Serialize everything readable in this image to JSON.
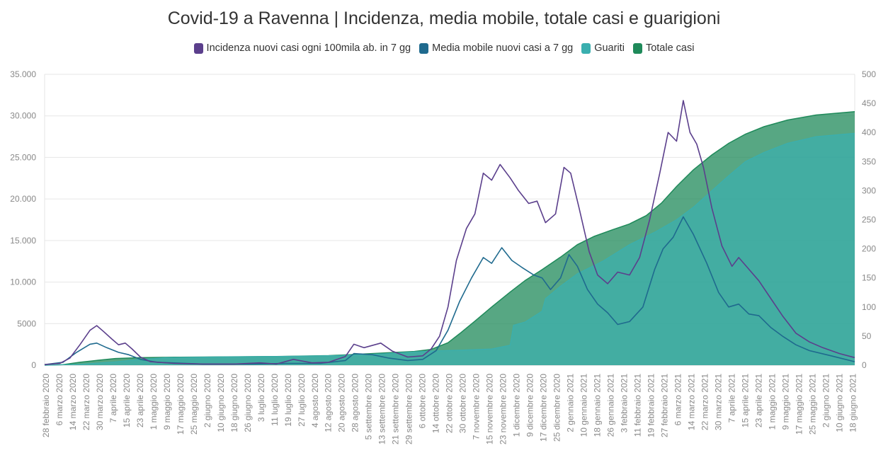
{
  "colors": {
    "incidenza": "#5b3f8c",
    "media": "#1f6a8e",
    "guariti": "#3aafaf",
    "totale": "#1f8a5a",
    "grid": "#e6e6e6",
    "axis_text": "#888888"
  },
  "chart_data": {
    "type": "area",
    "title": "Covid-19 a Ravenna | Incidenza, media mobile, totale casi e guarigioni",
    "legend_position": "top-center",
    "grid": true,
    "y_left": {
      "ylim": [
        0,
        35000
      ],
      "ticks": [
        0,
        5000,
        10000,
        15000,
        20000,
        25000,
        30000,
        35000
      ],
      "tick_labels": [
        "0",
        "5000",
        "10.000",
        "15.000",
        "20.000",
        "25.000",
        "30.000",
        "35.000"
      ]
    },
    "y_right": {
      "ylim": [
        0,
        500
      ],
      "ticks": [
        0,
        50,
        100,
        150,
        200,
        250,
        300,
        350,
        400,
        450,
        500
      ],
      "tick_labels": [
        "0",
        "50",
        "100",
        "150",
        "200",
        "250",
        "300",
        "350",
        "400",
        "450",
        "500"
      ]
    },
    "x_range": [
      "2020-02-28",
      "2021-06-24"
    ],
    "x_tick_labels": [
      "28 febbraio 2020",
      "6 marzo 2020",
      "14 marzo 2020",
      "22 marzo 2020",
      "30 marzo 2020",
      "7 aprile 2020",
      "15 aprile 2020",
      "23 aprile 2020",
      "1 maggio 2020",
      "9 maggio 2020",
      "17 maggio 2020",
      "25 maggio 2020",
      "2 giugno 2020",
      "10 giugno 2020",
      "18 giugno 2020",
      "26 giugno 2020",
      "3 luglio 2020",
      "11 luglio 2020",
      "19 luglio 2020",
      "27 luglio 2020",
      "4 agosto 2020",
      "12 agosto 2020",
      "20 agosto 2020",
      "28 agosto 2020",
      "5 settembre 2020",
      "13 settembre 2020",
      "21 settembre 2020",
      "29 settembre 2020",
      "6 ottobre 2020",
      "14 ottobre 2020",
      "22 ottobre 2020",
      "30 ottobre 2020",
      "7 novembre 2020",
      "15 novembre 2020",
      "23 novembre 2020",
      "1 dicembre 2020",
      "9 dicembre 2020",
      "17 dicembre 2020",
      "25 dicembre 2020",
      "2 gennaio 2021",
      "10 gennaio 2021",
      "18 gennaio 2021",
      "26 gennaio 2021",
      "3 febbraio 2021",
      "11 febbraio 2021",
      "19 febbraio 2021",
      "27 febbraio 2021",
      "6 marzo 2021",
      "14 marzo 2021",
      "22 marzo 2021",
      "30 marzo 2021",
      "7 aprile 2021",
      "15 aprile 2021",
      "23 aprile 2021",
      "1 maggio 2021",
      "9 maggio 2021",
      "17 maggio 2021",
      "25 maggio 2021",
      "2 giugno 2021",
      "10 giugno 2021",
      "18 giugno 2021"
    ],
    "series": [
      {
        "name": "Incidenza nuovi casi ogni 100mila ab. in 7 gg",
        "axis": "right",
        "kind": "line",
        "color": "#5b3f8c",
        "points": [
          [
            "2020-02-28",
            1
          ],
          [
            "2020-03-08",
            3
          ],
          [
            "2020-03-14",
            12
          ],
          [
            "2020-03-20",
            35
          ],
          [
            "2020-03-26",
            60
          ],
          [
            "2020-03-30",
            68
          ],
          [
            "2020-04-03",
            58
          ],
          [
            "2020-04-08",
            45
          ],
          [
            "2020-04-12",
            35
          ],
          [
            "2020-04-16",
            38
          ],
          [
            "2020-04-20",
            28
          ],
          [
            "2020-04-25",
            14
          ],
          [
            "2020-05-01",
            6
          ],
          [
            "2020-05-15",
            3
          ],
          [
            "2020-06-01",
            2
          ],
          [
            "2020-06-20",
            2
          ],
          [
            "2020-07-05",
            4
          ],
          [
            "2020-07-15",
            2
          ],
          [
            "2020-07-25",
            10
          ],
          [
            "2020-08-05",
            4
          ],
          [
            "2020-08-15",
            5
          ],
          [
            "2020-08-25",
            15
          ],
          [
            "2020-08-30",
            36
          ],
          [
            "2020-09-05",
            30
          ],
          [
            "2020-09-15",
            38
          ],
          [
            "2020-09-22",
            24
          ],
          [
            "2020-10-01",
            14
          ],
          [
            "2020-10-10",
            16
          ],
          [
            "2020-10-15",
            28
          ],
          [
            "2020-10-20",
            50
          ],
          [
            "2020-10-25",
            100
          ],
          [
            "2020-10-30",
            180
          ],
          [
            "2020-11-05",
            235
          ],
          [
            "2020-11-10",
            260
          ],
          [
            "2020-11-15",
            330
          ],
          [
            "2020-11-20",
            318
          ],
          [
            "2020-11-25",
            345
          ],
          [
            "2020-12-01",
            322
          ],
          [
            "2020-12-06",
            300
          ],
          [
            "2020-12-12",
            278
          ],
          [
            "2020-12-17",
            282
          ],
          [
            "2020-12-22",
            245
          ],
          [
            "2020-12-28",
            260
          ],
          [
            "2021-01-02",
            340
          ],
          [
            "2021-01-06",
            330
          ],
          [
            "2021-01-11",
            270
          ],
          [
            "2021-01-17",
            195
          ],
          [
            "2021-01-22",
            155
          ],
          [
            "2021-01-28",
            140
          ],
          [
            "2021-02-03",
            160
          ],
          [
            "2021-02-10",
            155
          ],
          [
            "2021-02-16",
            185
          ],
          [
            "2021-02-22",
            250
          ],
          [
            "2021-02-28",
            330
          ],
          [
            "2021-03-05",
            400
          ],
          [
            "2021-03-10",
            385
          ],
          [
            "2021-03-14",
            455
          ],
          [
            "2021-03-18",
            400
          ],
          [
            "2021-03-22",
            380
          ],
          [
            "2021-03-26",
            340
          ],
          [
            "2021-03-31",
            270
          ],
          [
            "2021-04-06",
            205
          ],
          [
            "2021-04-12",
            170
          ],
          [
            "2021-04-16",
            185
          ],
          [
            "2021-04-22",
            165
          ],
          [
            "2021-04-28",
            145
          ],
          [
            "2021-05-05",
            115
          ],
          [
            "2021-05-12",
            85
          ],
          [
            "2021-05-20",
            55
          ],
          [
            "2021-05-28",
            40
          ],
          [
            "2021-06-05",
            30
          ],
          [
            "2021-06-15",
            20
          ],
          [
            "2021-06-24",
            13
          ]
        ]
      },
      {
        "name": "Media mobile nuovi casi a 7 gg",
        "axis": "right",
        "kind": "line",
        "color": "#1f6a8e",
        "points": [
          [
            "2020-02-28",
            1
          ],
          [
            "2020-03-10",
            5
          ],
          [
            "2020-03-18",
            22
          ],
          [
            "2020-03-26",
            36
          ],
          [
            "2020-03-30",
            38
          ],
          [
            "2020-04-05",
            30
          ],
          [
            "2020-04-12",
            22
          ],
          [
            "2020-04-18",
            18
          ],
          [
            "2020-04-25",
            10
          ],
          [
            "2020-05-05",
            5
          ],
          [
            "2020-06-01",
            2
          ],
          [
            "2020-07-01",
            2
          ],
          [
            "2020-07-20",
            3
          ],
          [
            "2020-08-10",
            3
          ],
          [
            "2020-08-25",
            8
          ],
          [
            "2020-08-30",
            20
          ],
          [
            "2020-09-10",
            18
          ],
          [
            "2020-09-20",
            12
          ],
          [
            "2020-10-01",
            8
          ],
          [
            "2020-10-10",
            10
          ],
          [
            "2020-10-18",
            25
          ],
          [
            "2020-10-25",
            60
          ],
          [
            "2020-11-01",
            110
          ],
          [
            "2020-11-08",
            150
          ],
          [
            "2020-11-15",
            185
          ],
          [
            "2020-11-20",
            175
          ],
          [
            "2020-11-26",
            202
          ],
          [
            "2020-12-02",
            180
          ],
          [
            "2020-12-08",
            168
          ],
          [
            "2020-12-15",
            155
          ],
          [
            "2020-12-20",
            150
          ],
          [
            "2020-12-25",
            130
          ],
          [
            "2020-12-31",
            150
          ],
          [
            "2021-01-05",
            190
          ],
          [
            "2021-01-10",
            170
          ],
          [
            "2021-01-16",
            130
          ],
          [
            "2021-01-22",
            105
          ],
          [
            "2021-01-28",
            90
          ],
          [
            "2021-02-03",
            70
          ],
          [
            "2021-02-10",
            75
          ],
          [
            "2021-02-18",
            100
          ],
          [
            "2021-02-25",
            165
          ],
          [
            "2021-03-02",
            200
          ],
          [
            "2021-03-08",
            220
          ],
          [
            "2021-03-14",
            255
          ],
          [
            "2021-03-20",
            225
          ],
          [
            "2021-03-28",
            175
          ],
          [
            "2021-04-04",
            125
          ],
          [
            "2021-04-10",
            100
          ],
          [
            "2021-04-16",
            105
          ],
          [
            "2021-04-22",
            88
          ],
          [
            "2021-04-28",
            85
          ],
          [
            "2021-05-05",
            65
          ],
          [
            "2021-05-12",
            50
          ],
          [
            "2021-05-20",
            35
          ],
          [
            "2021-05-28",
            25
          ],
          [
            "2021-06-10",
            16
          ],
          [
            "2021-06-24",
            6
          ]
        ]
      },
      {
        "name": "Guariti",
        "axis": "left",
        "kind": "area",
        "color": "#3aafaf",
        "points": [
          [
            "2020-02-28",
            0
          ],
          [
            "2020-03-20",
            100
          ],
          [
            "2020-04-10",
            400
          ],
          [
            "2020-04-25",
            700
          ],
          [
            "2020-05-10",
            900
          ],
          [
            "2020-06-10",
            1000
          ],
          [
            "2020-07-15",
            1050
          ],
          [
            "2020-08-20",
            1150
          ],
          [
            "2020-09-15",
            1350
          ],
          [
            "2020-10-01",
            1550
          ],
          [
            "2020-10-15",
            1700
          ],
          [
            "2020-11-01",
            1800
          ],
          [
            "2020-11-20",
            1950
          ],
          [
            "2020-12-01",
            2400
          ],
          [
            "2020-12-03",
            4800
          ],
          [
            "2020-12-10",
            5200
          ],
          [
            "2020-12-20",
            6500
          ],
          [
            "2020-12-22",
            8000
          ],
          [
            "2020-12-31",
            9500
          ],
          [
            "2021-01-10",
            11000
          ],
          [
            "2021-01-25",
            12500
          ],
          [
            "2021-02-10",
            14500
          ],
          [
            "2021-02-25",
            16000
          ],
          [
            "2021-03-10",
            17500
          ],
          [
            "2021-03-20",
            19000
          ],
          [
            "2021-03-31",
            21000
          ],
          [
            "2021-04-10",
            22800
          ],
          [
            "2021-04-20",
            24500
          ],
          [
            "2021-05-01",
            25600
          ],
          [
            "2021-05-15",
            26700
          ],
          [
            "2021-06-01",
            27500
          ],
          [
            "2021-06-24",
            27900
          ]
        ]
      },
      {
        "name": "Totale casi",
        "axis": "left",
        "kind": "area",
        "color": "#1f8a5a",
        "points": [
          [
            "2020-02-28",
            0
          ],
          [
            "2020-03-10",
            60
          ],
          [
            "2020-03-20",
            350
          ],
          [
            "2020-03-31",
            600
          ],
          [
            "2020-04-10",
            800
          ],
          [
            "2020-04-25",
            900
          ],
          [
            "2020-05-15",
            950
          ],
          [
            "2020-06-15",
            1000
          ],
          [
            "2020-07-15",
            1050
          ],
          [
            "2020-08-15",
            1150
          ],
          [
            "2020-09-01",
            1300
          ],
          [
            "2020-09-20",
            1500
          ],
          [
            "2020-10-05",
            1650
          ],
          [
            "2020-10-15",
            1900
          ],
          [
            "2020-10-25",
            2700
          ],
          [
            "2020-11-01",
            3800
          ],
          [
            "2020-11-10",
            5300
          ],
          [
            "2020-11-20",
            7000
          ],
          [
            "2020-12-01",
            8800
          ],
          [
            "2020-12-10",
            10200
          ],
          [
            "2020-12-20",
            11500
          ],
          [
            "2020-12-31",
            13000
          ],
          [
            "2021-01-10",
            14500
          ],
          [
            "2021-01-20",
            15500
          ],
          [
            "2021-01-31",
            16300
          ],
          [
            "2021-02-10",
            17000
          ],
          [
            "2021-02-20",
            18000
          ],
          [
            "2021-03-01",
            19500
          ],
          [
            "2021-03-10",
            21500
          ],
          [
            "2021-03-20",
            23500
          ],
          [
            "2021-03-31",
            25300
          ],
          [
            "2021-04-10",
            26700
          ],
          [
            "2021-04-20",
            27800
          ],
          [
            "2021-05-01",
            28700
          ],
          [
            "2021-05-15",
            29500
          ],
          [
            "2021-06-01",
            30100
          ],
          [
            "2021-06-24",
            30500
          ]
        ]
      }
    ]
  }
}
